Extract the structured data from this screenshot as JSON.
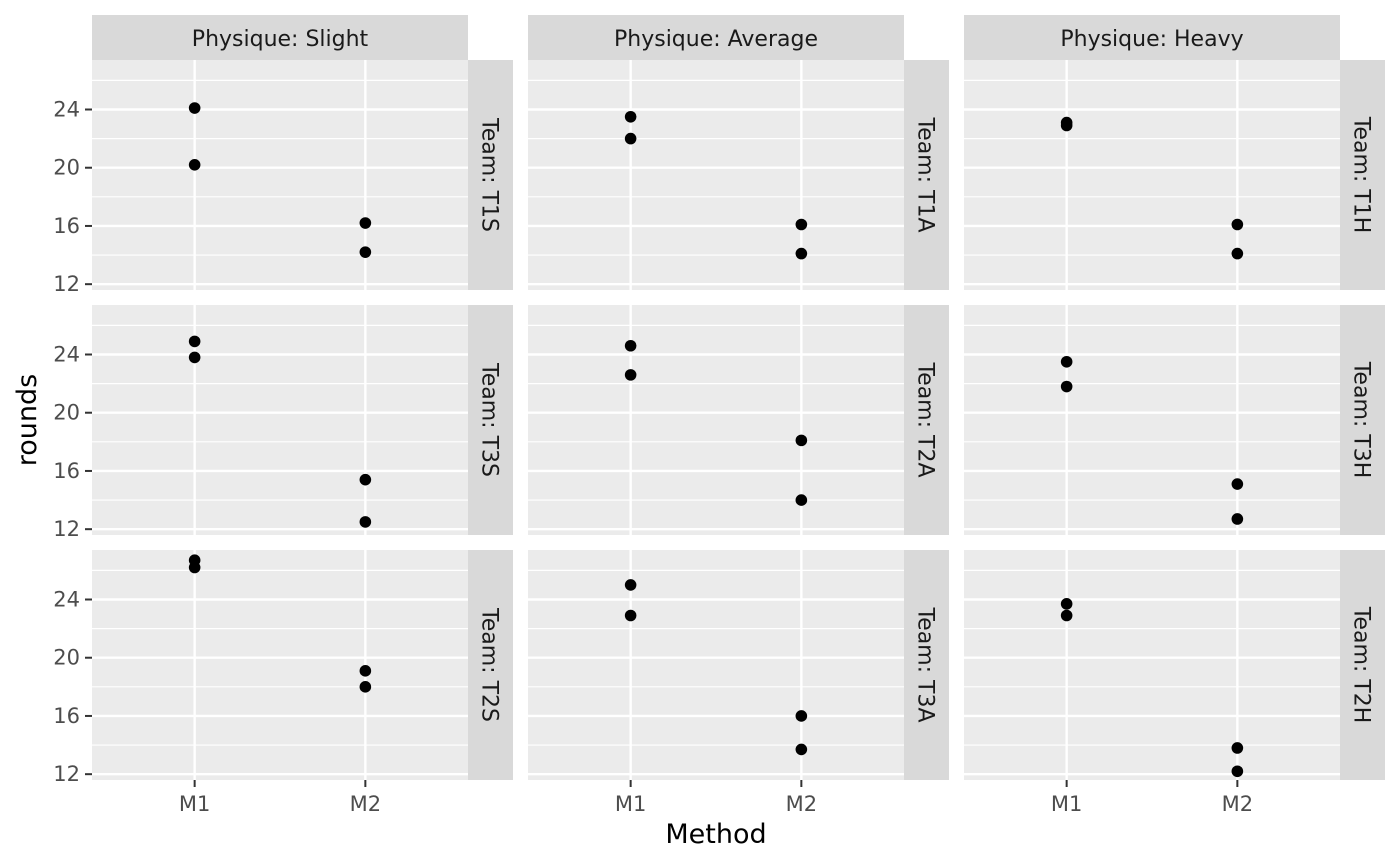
{
  "chart_data": {
    "type": "scatter",
    "facet": "grid",
    "xlabel": "Method",
    "ylabel": "rounds",
    "x_categories": [
      "M1",
      "M2"
    ],
    "yticks": [
      12,
      16,
      20,
      24
    ],
    "ylim": [
      11.6,
      27.4
    ],
    "grid": true,
    "legend": "none",
    "point_color": "#000000",
    "panel_bg": "#ebebeb",
    "strip_bg": "#d9d9d9",
    "columns": [
      "Physique: Slight",
      "Physique: Average",
      "Physique: Heavy"
    ],
    "panels": [
      {
        "col": 0,
        "row": 0,
        "team": "Team: T1S",
        "points": [
          {
            "x": "M1",
            "y": 24.1
          },
          {
            "x": "M1",
            "y": 20.2
          },
          {
            "x": "M2",
            "y": 16.2
          },
          {
            "x": "M2",
            "y": 14.2
          }
        ]
      },
      {
        "col": 1,
        "row": 0,
        "team": "Team: T1A",
        "points": [
          {
            "x": "M1",
            "y": 23.5
          },
          {
            "x": "M1",
            "y": 22.0
          },
          {
            "x": "M2",
            "y": 16.1
          },
          {
            "x": "M2",
            "y": 14.1
          }
        ]
      },
      {
        "col": 2,
        "row": 0,
        "team": "Team: T1H",
        "points": [
          {
            "x": "M1",
            "y": 23.1
          },
          {
            "x": "M1",
            "y": 22.9
          },
          {
            "x": "M2",
            "y": 16.1
          },
          {
            "x": "M2",
            "y": 14.1
          }
        ]
      },
      {
        "col": 0,
        "row": 1,
        "team": "Team: T3S",
        "points": [
          {
            "x": "M1",
            "y": 24.9
          },
          {
            "x": "M1",
            "y": 23.8
          },
          {
            "x": "M2",
            "y": 15.4
          },
          {
            "x": "M2",
            "y": 12.5
          }
        ]
      },
      {
        "col": 1,
        "row": 1,
        "team": "Team: T2A",
        "points": [
          {
            "x": "M1",
            "y": 24.6
          },
          {
            "x": "M1",
            "y": 22.6
          },
          {
            "x": "M2",
            "y": 18.1
          },
          {
            "x": "M2",
            "y": 14.0
          }
        ]
      },
      {
        "col": 2,
        "row": 1,
        "team": "Team: T3H",
        "points": [
          {
            "x": "M1",
            "y": 23.5
          },
          {
            "x": "M1",
            "y": 21.8
          },
          {
            "x": "M2",
            "y": 15.1
          },
          {
            "x": "M2",
            "y": 12.7
          }
        ]
      },
      {
        "col": 0,
        "row": 2,
        "team": "Team: T2S",
        "points": [
          {
            "x": "M1",
            "y": 26.7
          },
          {
            "x": "M1",
            "y": 26.2
          },
          {
            "x": "M2",
            "y": 19.1
          },
          {
            "x": "M2",
            "y": 18.0
          }
        ]
      },
      {
        "col": 1,
        "row": 2,
        "team": "Team: T3A",
        "points": [
          {
            "x": "M1",
            "y": 25.0
          },
          {
            "x": "M1",
            "y": 22.9
          },
          {
            "x": "M2",
            "y": 16.0
          },
          {
            "x": "M2",
            "y": 13.7
          }
        ]
      },
      {
        "col": 2,
        "row": 2,
        "team": "Team: T2H",
        "points": [
          {
            "x": "M1",
            "y": 23.7
          },
          {
            "x": "M1",
            "y": 22.9
          },
          {
            "x": "M2",
            "y": 13.8
          },
          {
            "x": "M2",
            "y": 12.2
          }
        ]
      }
    ]
  }
}
